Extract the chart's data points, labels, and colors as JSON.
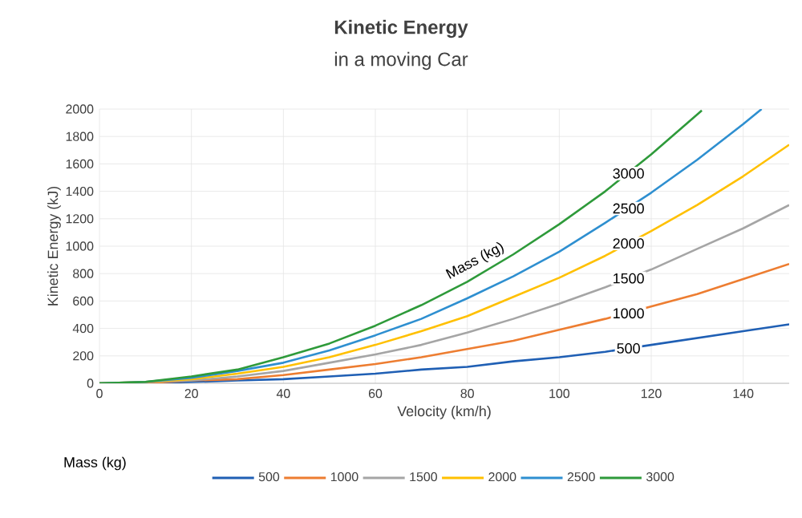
{
  "chart_data": {
    "type": "line",
    "title": "Kinetic Energy",
    "subtitle": "in a moving Car",
    "xlabel": "Velocity (km/h)",
    "ylabel": "Kinetic Energy (kJ)",
    "legend_title": "Mass (kg)",
    "x": [
      0,
      10,
      20,
      30,
      40,
      50,
      60,
      70,
      80,
      90,
      100,
      110,
      120,
      130,
      140,
      150
    ],
    "series": [
      {
        "name": "500",
        "color": "#1f5fb4",
        "values": [
          0,
          0,
          10,
          20,
          30,
          50,
          70,
          100,
          120,
          160,
          190,
          230,
          280,
          330,
          380,
          430
        ]
      },
      {
        "name": "1000",
        "color": "#ed7d31",
        "values": [
          0,
          0,
          20,
          30,
          60,
          100,
          140,
          190,
          250,
          310,
          390,
          470,
          560,
          650,
          760,
          870
        ]
      },
      {
        "name": "1500",
        "color": "#a5a5a5",
        "values": [
          0,
          10,
          20,
          50,
          90,
          150,
          210,
          280,
          370,
          470,
          580,
          700,
          830,
          980,
          1130,
          1300
        ]
      },
      {
        "name": "2000",
        "color": "#ffc000",
        "values": [
          0,
          10,
          30,
          70,
          120,
          190,
          280,
          380,
          490,
          630,
          770,
          930,
          1110,
          1300,
          1510,
          1740
        ]
      },
      {
        "name": "2500",
        "color": "#2e8fd0",
        "x": [
          0,
          10,
          20,
          30,
          40,
          50,
          60,
          70,
          80,
          90,
          100,
          110,
          120,
          130,
          140,
          144
        ],
        "values": [
          0,
          10,
          40,
          90,
          150,
          240,
          350,
          470,
          620,
          780,
          960,
          1170,
          1390,
          1630,
          1890,
          2000
        ]
      },
      {
        "name": "3000",
        "color": "#2e9a3a",
        "x": [
          0,
          10,
          20,
          30,
          40,
          50,
          60,
          70,
          80,
          90,
          100,
          110,
          120,
          130,
          131
        ],
        "values": [
          0,
          10,
          50,
          100,
          190,
          290,
          420,
          570,
          740,
          940,
          1160,
          1400,
          1670,
          1960,
          1990
        ]
      }
    ],
    "xlim": [
      0,
      150
    ],
    "xticks": [
      0,
      20,
      40,
      60,
      80,
      100,
      120,
      140
    ],
    "ylim": [
      0,
      2000
    ],
    "yticks": [
      0,
      200,
      400,
      600,
      800,
      1000,
      1200,
      1400,
      1600,
      1800,
      2000
    ],
    "annotations": [
      "Mass (kg)",
      "3000",
      "2500",
      "2000",
      "1500",
      "1000",
      "500"
    ],
    "grid": true,
    "legend": "bottom",
    "marker": "none",
    "line_style": "solid"
  }
}
